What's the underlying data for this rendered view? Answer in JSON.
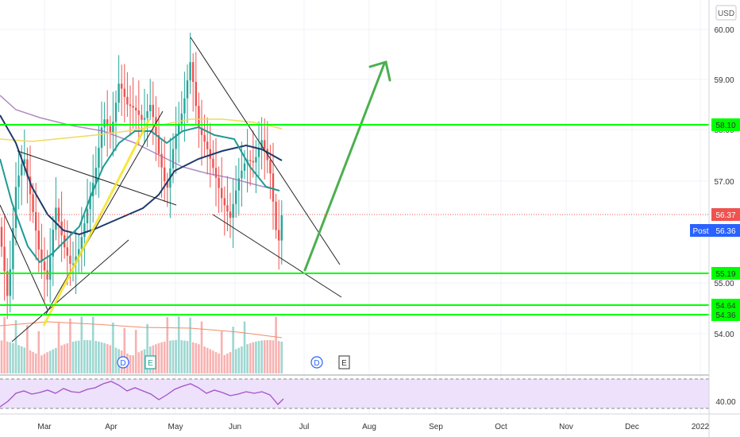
{
  "currency": "USD",
  "chart_data": {
    "type": "candlestick",
    "x_axis": {
      "labels": [
        "Mar",
        "Apr",
        "May",
        "Jun",
        "Jul",
        "Aug",
        "Sep",
        "Oct",
        "Nov",
        "Dec",
        "2022"
      ]
    },
    "y_axis": {
      "labels": [
        "60.00",
        "59.00",
        "58.00",
        "57.00",
        "55.00",
        "54.00"
      ],
      "range": [
        53.3,
        60.3
      ]
    },
    "last_price": "56.37",
    "post_label": "Post",
    "post_price": "56.36",
    "horizontal_levels": [
      {
        "value": 58.1,
        "label": "58.10"
      },
      {
        "value": 55.19,
        "label": "55.19"
      },
      {
        "value": 54.64,
        "label": "54.64"
      },
      {
        "value": 54.36,
        "label": "54.36"
      }
    ],
    "events": [
      "D",
      "E",
      "D",
      "E"
    ],
    "rsi": {
      "level_label": "40.00"
    },
    "colors": {
      "up": "#26a69a",
      "down": "#ef5350",
      "levels": "#00ff00",
      "arrow": "#4caf50",
      "price_tag": "#ef5350",
      "post_tag": "#2962ff"
    }
  }
}
